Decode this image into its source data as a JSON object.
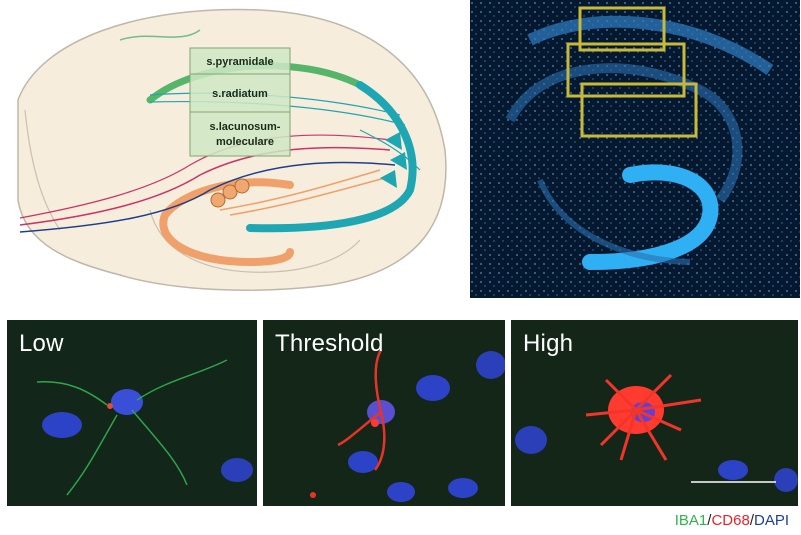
{
  "diagram": {
    "layers": {
      "pyramidale": "s.pyramidale",
      "radiatum": "s.radiatum",
      "lacunosum_line1": "s.lacunosum-",
      "lacunosum_line2": "moleculare"
    }
  },
  "micrographs": [
    {
      "label": "Low"
    },
    {
      "label": "Threshold"
    },
    {
      "label": "High"
    }
  ],
  "stain_legend": {
    "iba1": "IBA1",
    "sep1": "/",
    "cd68": "CD68",
    "sep2": "/",
    "dapi": "DAPI"
  },
  "colors": {
    "iba1": "#2fb34a",
    "cd68": "#e8232a",
    "dapi": "#1d3f9b",
    "roi_box": "#c9b93a"
  }
}
